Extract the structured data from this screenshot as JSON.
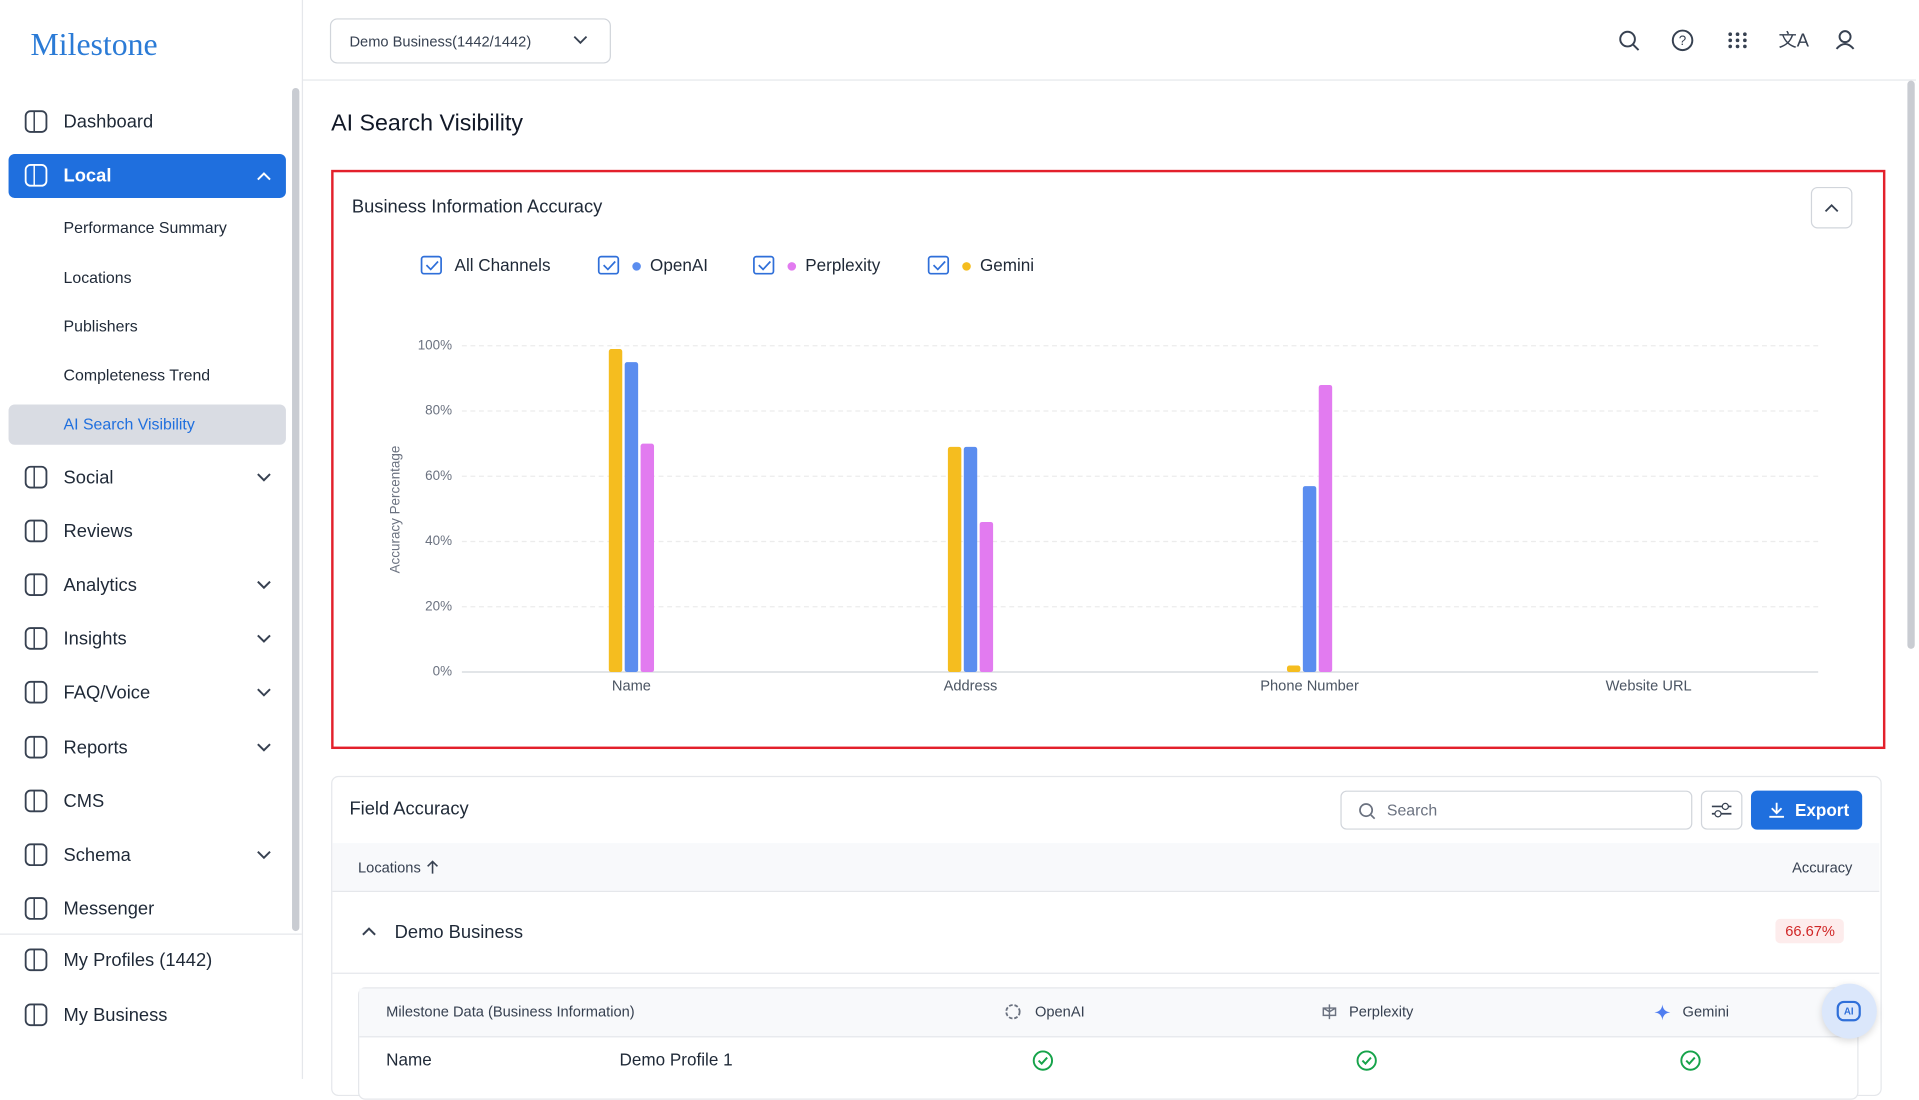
{
  "sidebar": {
    "logo": "Milestone",
    "menu": [
      "Dashboard",
      "Local",
      "Performance Summary",
      "Locations",
      "Publishers",
      "Completeness Trend",
      "AI Search Visibility",
      "Social",
      "Reviews",
      "Analytics",
      "Insights",
      "FAQ/Voice",
      "Reports",
      "CMS",
      "Schema",
      "Messenger",
      "My Profiles (1442)",
      "My Business"
    ]
  },
  "topbar": {
    "business_selector": "Demo Business(1442/1442)"
  },
  "page": {
    "title": "AI Search Visibility"
  },
  "chart_data": {
    "type": "bar",
    "title": "Business Information Accuracy",
    "legend_toggle_all": "All Channels",
    "y_label": "Accuracy Percentage",
    "categories": [
      "Name",
      "Address",
      "Phone Number",
      "Website URL"
    ],
    "series": [
      {
        "name": "OpenAI",
        "color": "#5b8def",
        "values": [
          95,
          69,
          57,
          0
        ]
      },
      {
        "name": "Perplexity",
        "color": "#e27bf0",
        "values": [
          70,
          46,
          88,
          0
        ]
      },
      {
        "name": "Gemini",
        "color": "#f5bd1f",
        "values": [
          99,
          69,
          2,
          0
        ]
      }
    ],
    "ylim": [
      0,
      100
    ],
    "yticks": [
      {
        "value": 0,
        "label": "0%"
      },
      {
        "value": 20,
        "label": "20%"
      },
      {
        "value": 40,
        "label": "40%"
      },
      {
        "value": 60,
        "label": "60%"
      },
      {
        "value": 80,
        "label": "80%"
      },
      {
        "value": 100,
        "label": "100%"
      }
    ],
    "grid": true
  },
  "field_accuracy": {
    "title": "Field Accuracy",
    "search_placeholder": "Search",
    "export": "Export",
    "columns": [
      "Locations",
      "Accuracy"
    ],
    "group": {
      "name": "Demo Business",
      "accuracy": "66.67%"
    },
    "detail_columns": [
      "Milestone Data (Business Information)",
      "OpenAI",
      "Perplexity",
      "Gemini"
    ],
    "rows": [
      [
        "Name",
        "Demo Profile 1"
      ]
    ]
  }
}
